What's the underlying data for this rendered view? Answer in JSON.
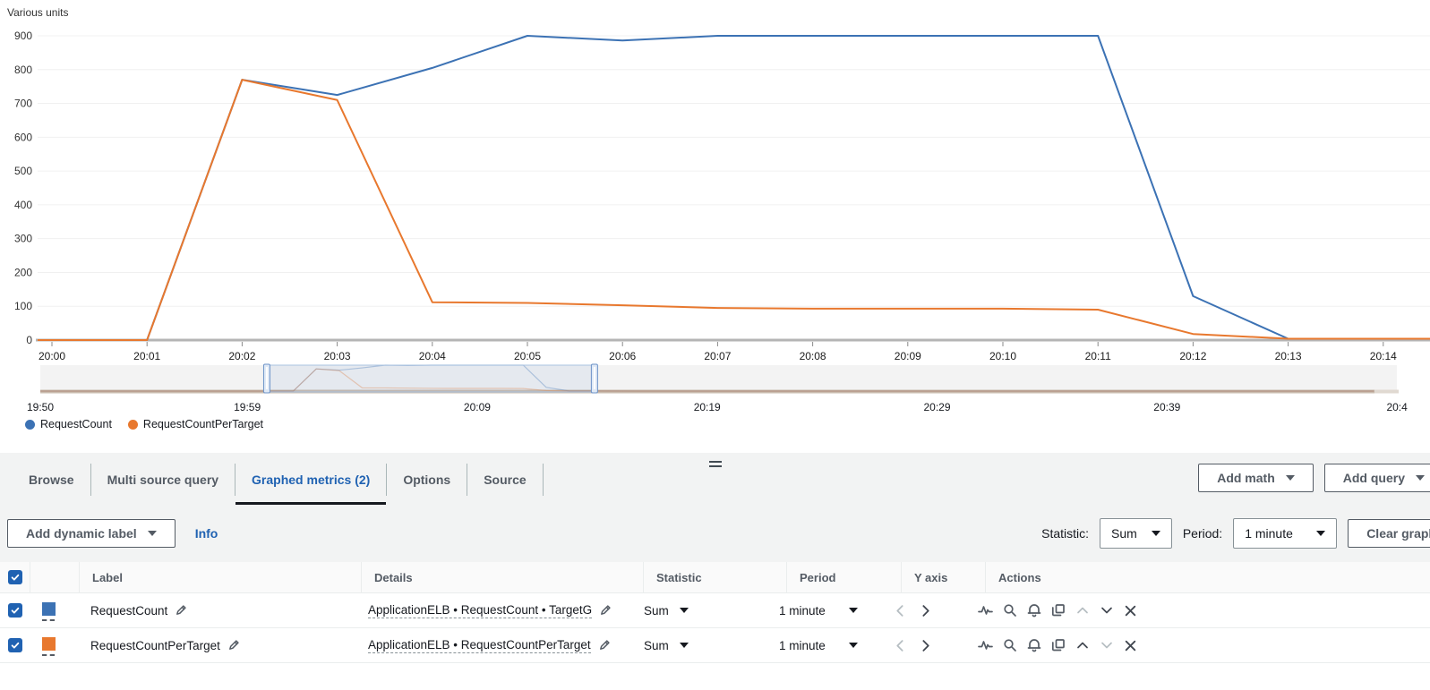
{
  "colors": {
    "accent": "#2062b2",
    "text": "#16191f",
    "secondary": "#545b64",
    "disabled": "#aab7b8"
  },
  "chart_data": {
    "type": "line",
    "title": "Various units",
    "ylabel": "Various units",
    "ylim": [
      0,
      900
    ],
    "yticks": [
      0,
      100,
      200,
      300,
      400,
      500,
      600,
      700,
      800,
      900
    ],
    "x_tick_labels": [
      "20:00",
      "20:01",
      "20:02",
      "20:03",
      "20:04",
      "20:05",
      "20:06",
      "20:07",
      "20:08",
      "20:09",
      "20:10",
      "20:11",
      "20:12",
      "20:13",
      "20:14"
    ],
    "grid": true,
    "legend_position": "bottom-left",
    "series": [
      {
        "name": "RequestCount",
        "color": "#3c72b4",
        "values": [
          0,
          0,
          770,
          725,
          805,
          900,
          886,
          900,
          900,
          900,
          900,
          900,
          130,
          4,
          4
        ]
      },
      {
        "name": "RequestCountPerTarget",
        "color": "#e8782e",
        "values": [
          0,
          0,
          770,
          710,
          112,
          110,
          103,
          95,
          93,
          93,
          93,
          90,
          18,
          4,
          4
        ]
      }
    ],
    "timeline": {
      "labels": [
        "19:50",
        "19:59",
        "20:09",
        "20:19",
        "20:29",
        "20:39",
        "20:4"
      ],
      "label_minutes": [
        0,
        9,
        19,
        29,
        39,
        49,
        59
      ],
      "brush_start_minute": 9.85,
      "brush_end_minute": 24.1,
      "series_offset_minutes": 10
    }
  },
  "tabs": {
    "items": [
      {
        "label": "Browse"
      },
      {
        "label": "Multi source query"
      },
      {
        "label": "Graphed metrics (2)"
      },
      {
        "label": "Options"
      },
      {
        "label": "Source"
      }
    ]
  },
  "header_buttons": {
    "add_math": "Add math",
    "add_query": "Add query"
  },
  "toolbar": {
    "add_dynamic_label": "Add dynamic label",
    "info": "Info",
    "statistic_label": "Statistic:",
    "statistic_value": "Sum",
    "period_label": "Period:",
    "period_value": "1 minute",
    "clear_graph": "Clear graph"
  },
  "table": {
    "columns": [
      "Label",
      "Details",
      "Statistic",
      "Period",
      "Y axis",
      "Actions"
    ],
    "rows": [
      {
        "label": "RequestCount",
        "color": "#3c72b4",
        "details": "ApplicationELB • RequestCount • TargetG",
        "statistic": "Sum",
        "period": "1 minute"
      },
      {
        "label": "RequestCountPerTarget",
        "color": "#e8782e",
        "details": "ApplicationELB • RequestCountPerTarget",
        "statistic": "Sum",
        "period": "1 minute"
      }
    ]
  }
}
